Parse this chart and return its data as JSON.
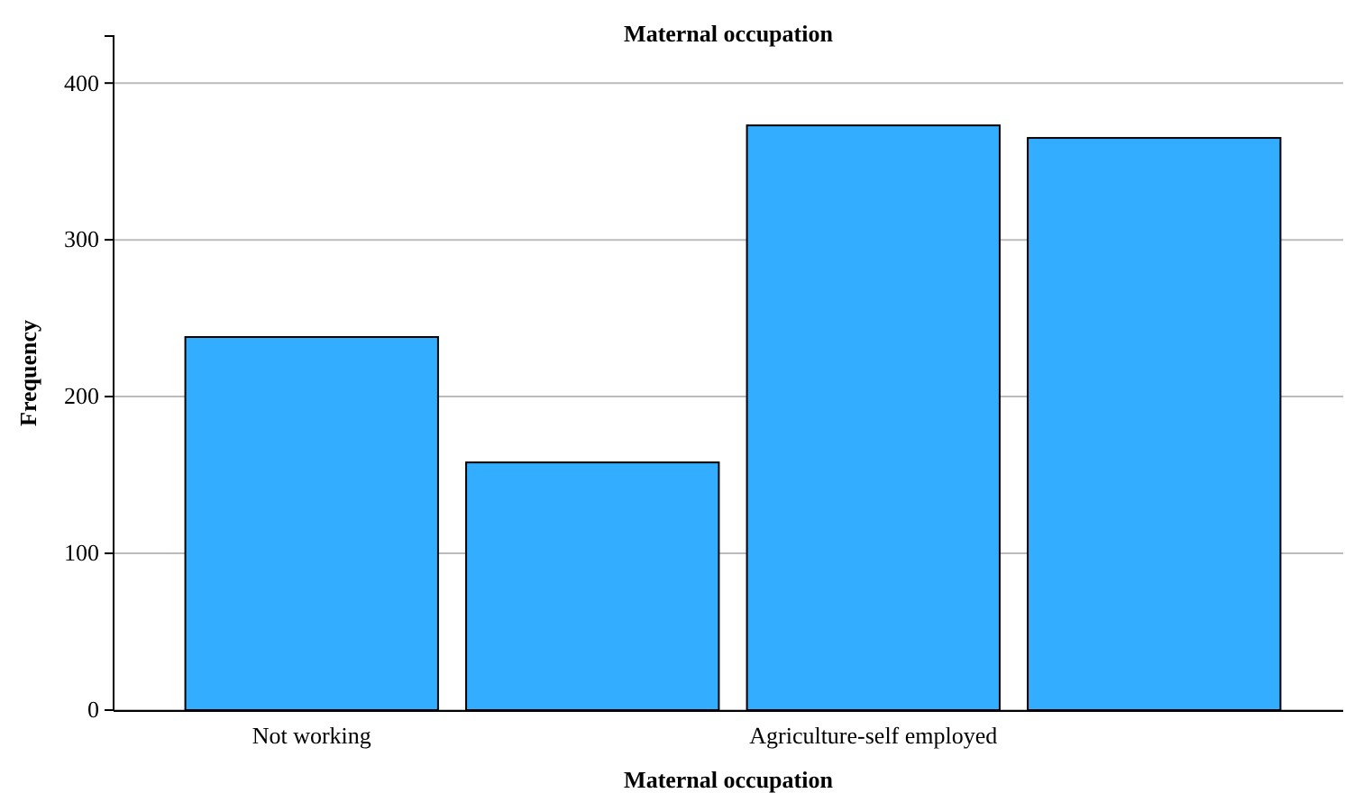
{
  "chart_data": {
    "type": "bar",
    "title": "Maternal occupation",
    "xlabel": "Maternal occupation",
    "ylabel": "Frequency",
    "categories": [
      "Not working",
      null,
      "Agriculture-self employed",
      null
    ],
    "values": [
      238,
      158,
      373,
      365
    ],
    "color": "#33adff",
    "ylim": [
      0,
      430
    ],
    "yticks": [
      0,
      100,
      200,
      300,
      400
    ],
    "grid": "y"
  }
}
